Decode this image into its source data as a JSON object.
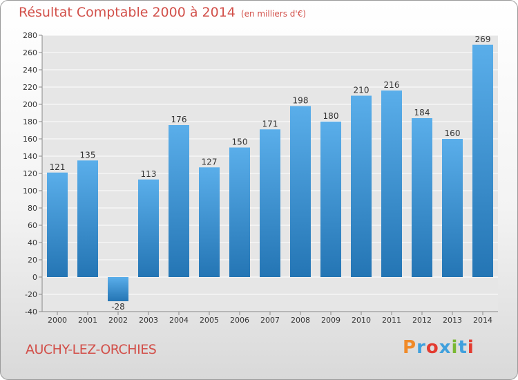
{
  "title": "Résultat Comptable 2000 à 2014",
  "subtitle": "(en milliers d'€)",
  "commune": "AUCHY-LEZ-ORCHIES",
  "logo_text": "Proxiti",
  "colors": {
    "title": "#d2504a",
    "bar_light": "#5aaeea",
    "bar_dark": "#2475b4",
    "logo": [
      "#f08a28",
      "#3fa0dd",
      "#e33b30",
      "#3fa0dd",
      "#7ab833",
      "#3fa0dd",
      "#e33b30"
    ]
  },
  "chart_data": {
    "type": "bar",
    "title": "Résultat Comptable 2000 à 2014",
    "subtitle": "(en milliers d'€)",
    "xlabel": "",
    "ylabel": "",
    "categories": [
      "2000",
      "2001",
      "2002",
      "2003",
      "2004",
      "2005",
      "2006",
      "2007",
      "2008",
      "2009",
      "2010",
      "2011",
      "2012",
      "2013",
      "2014"
    ],
    "values": [
      121,
      135,
      -28,
      113,
      176,
      127,
      150,
      171,
      198,
      180,
      210,
      216,
      184,
      160,
      269
    ],
    "ylim": [
      -40,
      280
    ],
    "yticks": [
      "-40",
      "-20",
      "0",
      "20",
      "40",
      "60",
      "80",
      "100",
      "120",
      "140",
      "160",
      "180",
      "200",
      "220",
      "240",
      "260",
      "280"
    ],
    "grid": true,
    "legend": "none"
  }
}
